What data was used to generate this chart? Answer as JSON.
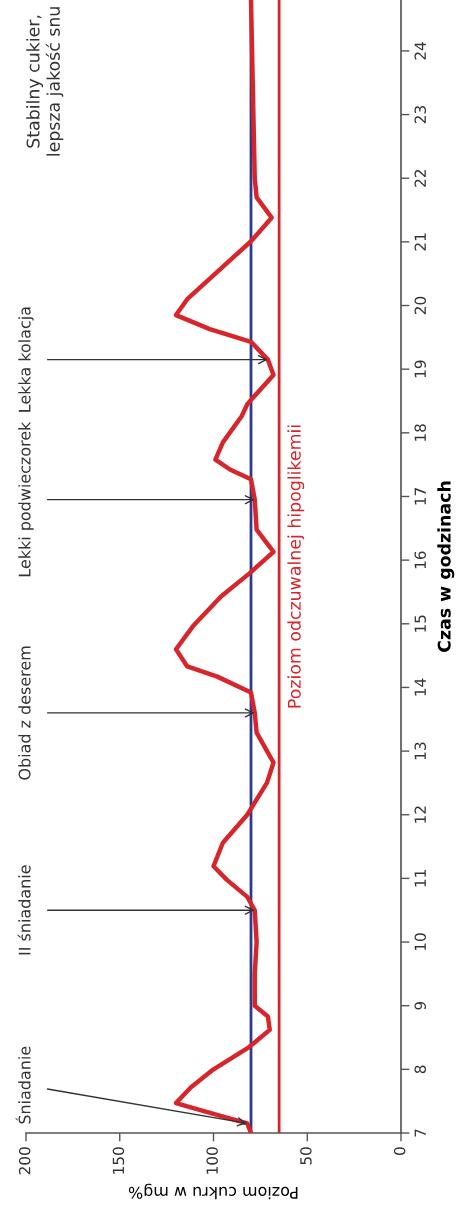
{
  "chart_data": {
    "type": "line",
    "xlabel": "Poziom cukru w mg%",
    "ylabel": "Czas w godzinach",
    "series": [
      {
        "color": "#d7262b",
        "x": [
          80,
          82,
          100,
          120,
          112,
          100,
          81,
          70,
          71,
          78,
          78,
          77,
          78,
          82,
          93,
          100,
          95,
          82,
          71.5,
          68,
          77,
          78,
          80,
          98,
          114,
          120,
          111,
          96,
          80.5,
          68,
          77,
          78,
          80,
          91,
          99,
          95,
          85,
          82,
          68,
          71,
          80,
          102,
          120,
          114,
          98,
          80,
          69,
          77,
          78,
          80
        ],
        "values": [
          7,
          7.15,
          7.3,
          7.47,
          7.72,
          8,
          8.35,
          8.62,
          8.83,
          9,
          9.5,
          10,
          10.5,
          10.71,
          10.98,
          11.19,
          11.56,
          12,
          12.5,
          12.82,
          13.29,
          13.6,
          13.92,
          14.17,
          14.33,
          14.6,
          14.96,
          15.43,
          15.8,
          16.13,
          16.48,
          16.95,
          17.27,
          17.42,
          17.58,
          17.85,
          18.26,
          18.45,
          18.91,
          19.15,
          19.43,
          19.63,
          19.85,
          20.1,
          20.53,
          21.01,
          21.38,
          21.7,
          22,
          24.8
        ]
      }
    ],
    "xlim": [
      200,
      0
    ],
    "xticks": [
      0,
      50,
      100,
      150,
      200
    ],
    "ylim": [
      7,
      24.8
    ],
    "yticks": [
      7,
      8,
      9,
      10,
      11,
      12,
      13,
      14,
      15,
      16,
      17,
      18,
      19,
      20,
      21,
      22,
      23,
      24
    ],
    "ref_lines": [
      {
        "axis": "x",
        "value": 80,
        "color": "#2b3990"
      },
      {
        "axis": "x",
        "value": 65,
        "label": "Poziom odczuwalnej hipoglikemii",
        "color": "#d7262b"
      }
    ],
    "annotations": [
      {
        "text": "Śniadanie",
        "x": 82,
        "y": 7.15
      },
      {
        "text": "II śniadanie",
        "x": 78,
        "y": 10.5
      },
      {
        "text": "Obiad z deserem",
        "x": 78,
        "y": 13.6
      },
      {
        "text": "Lekki podwieczorek",
        "x": 78,
        "y": 16.95
      },
      {
        "text": "Lekka kolacja",
        "x": 71,
        "y": 19.15
      },
      "Stabilny cukier,\nlepsza jakość snu"
    ],
    "grid": false,
    "legend": false,
    "marker": "none",
    "line_style": "solid"
  }
}
